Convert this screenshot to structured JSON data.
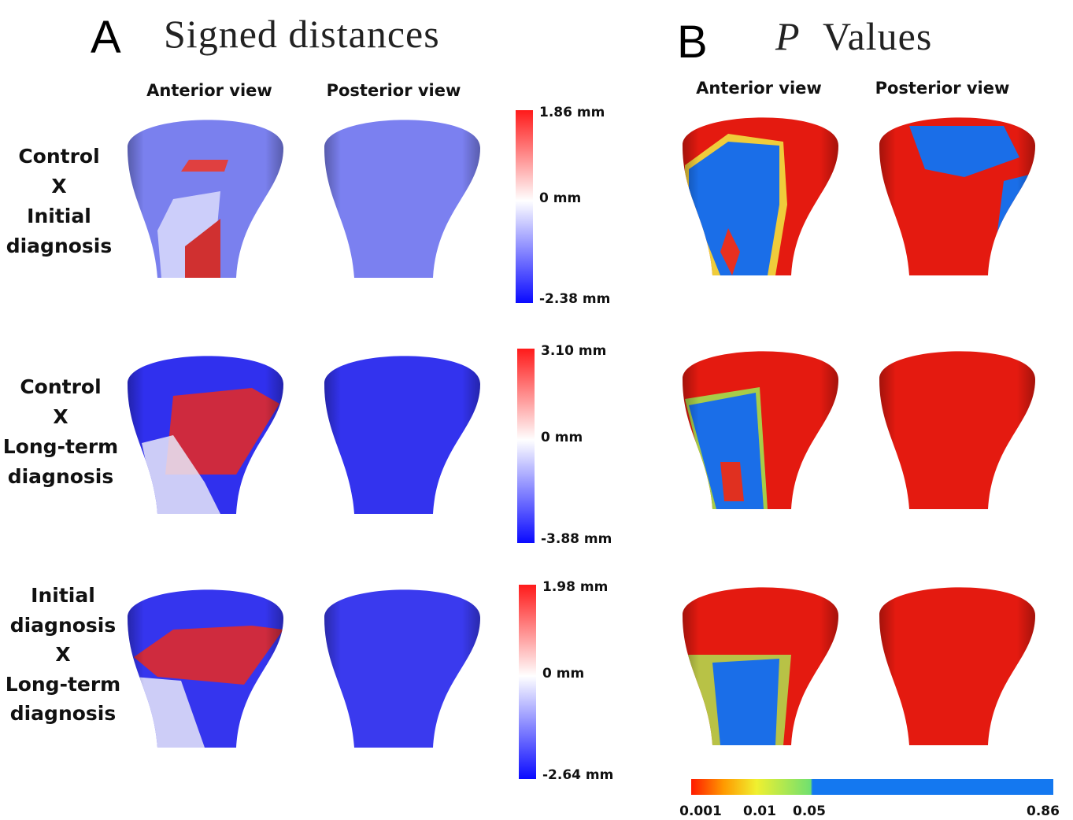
{
  "panels": [
    {
      "letter": "A",
      "title": "Signed distances",
      "views": [
        "Anterior view",
        "Posterior view"
      ],
      "rows": [
        {
          "label": [
            "Control",
            "X",
            "Initial",
            "diagnosis"
          ],
          "scale": [
            "1.86 mm",
            "0 mm",
            "-2.38 mm"
          ]
        },
        {
          "label": [
            "Control",
            "X",
            "Long-term",
            "diagnosis"
          ],
          "scale": [
            "3.10 mm",
            "0 mm",
            "-3.88 mm"
          ]
        },
        {
          "label": [
            "Initial",
            "diagnosis",
            "X",
            "Long-term",
            "diagnosis"
          ],
          "scale": [
            "1.98 mm",
            "0 mm",
            "-2.64 mm"
          ]
        }
      ]
    },
    {
      "letter": "B",
      "title_italic": "P",
      "title": "Values",
      "views": [
        "Anterior view",
        "Posterior view"
      ],
      "scale": [
        "0.001",
        "0.01",
        "0.05",
        "0.86"
      ]
    }
  ]
}
